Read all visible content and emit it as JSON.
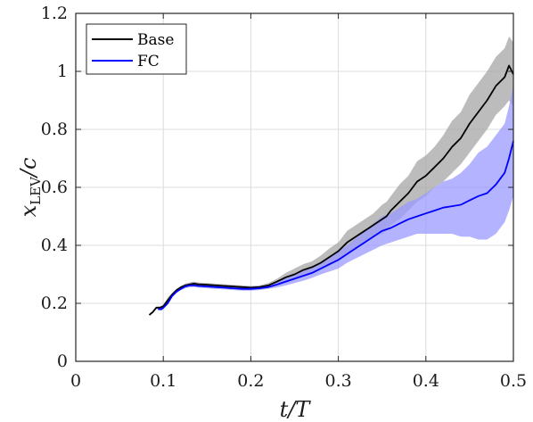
{
  "chart_data": {
    "type": "line",
    "xlabel": "t/T",
    "ylabel": "x_LEV/c",
    "ylabel_main": "x",
    "ylabel_sub": "LEV",
    "ylabel_tail": "/c",
    "xlim": [
      0,
      0.5
    ],
    "ylim": [
      0,
      1.2
    ],
    "xticks": [
      0,
      0.1,
      0.2,
      0.3,
      0.4,
      0.5
    ],
    "xtick_labels": [
      "0",
      "0.1",
      "0.2",
      "0.3",
      "0.4",
      "0.5"
    ],
    "yticks": [
      0,
      0.2,
      0.4,
      0.6,
      0.8,
      1.0,
      1.2
    ],
    "ytick_labels": [
      "0",
      "0.2",
      "0.4",
      "0.6",
      "0.8",
      "1",
      "1.2"
    ],
    "grid": true,
    "legend_position": "top-left",
    "series": [
      {
        "name": "Base",
        "color": "#000000",
        "band_color": "#a6a6a6",
        "x": [
          0.084,
          0.088,
          0.092,
          0.096,
          0.1,
          0.105,
          0.11,
          0.115,
          0.12,
          0.125,
          0.13,
          0.135,
          0.14,
          0.15,
          0.16,
          0.17,
          0.18,
          0.19,
          0.2,
          0.21,
          0.22,
          0.23,
          0.24,
          0.25,
          0.26,
          0.27,
          0.28,
          0.29,
          0.3,
          0.31,
          0.32,
          0.33,
          0.34,
          0.35,
          0.355,
          0.36,
          0.37,
          0.38,
          0.39,
          0.4,
          0.41,
          0.42,
          0.43,
          0.44,
          0.45,
          0.46,
          0.47,
          0.48,
          0.49,
          0.495,
          0.5
        ],
        "y": [
          0.16,
          0.17,
          0.185,
          0.185,
          0.19,
          0.21,
          0.23,
          0.245,
          0.255,
          0.262,
          0.265,
          0.268,
          0.266,
          0.264,
          0.262,
          0.26,
          0.258,
          0.256,
          0.254,
          0.256,
          0.262,
          0.275,
          0.29,
          0.3,
          0.315,
          0.325,
          0.34,
          0.36,
          0.38,
          0.41,
          0.43,
          0.45,
          0.47,
          0.49,
          0.5,
          0.52,
          0.55,
          0.58,
          0.62,
          0.64,
          0.67,
          0.7,
          0.74,
          0.77,
          0.82,
          0.86,
          0.9,
          0.95,
          0.98,
          1.02,
          0.99
        ],
        "lower": [
          0.16,
          0.17,
          0.18,
          0.18,
          0.185,
          0.2,
          0.225,
          0.24,
          0.25,
          0.255,
          0.258,
          0.26,
          0.26,
          0.258,
          0.256,
          0.255,
          0.252,
          0.25,
          0.248,
          0.25,
          0.255,
          0.265,
          0.275,
          0.28,
          0.295,
          0.305,
          0.315,
          0.33,
          0.35,
          0.37,
          0.39,
          0.41,
          0.43,
          0.44,
          0.45,
          0.47,
          0.49,
          0.52,
          0.55,
          0.57,
          0.6,
          0.62,
          0.65,
          0.68,
          0.72,
          0.76,
          0.8,
          0.85,
          0.88,
          0.9,
          0.88
        ],
        "upper": [
          0.16,
          0.17,
          0.19,
          0.19,
          0.195,
          0.22,
          0.235,
          0.25,
          0.26,
          0.268,
          0.272,
          0.275,
          0.272,
          0.27,
          0.268,
          0.266,
          0.264,
          0.262,
          0.26,
          0.262,
          0.27,
          0.285,
          0.305,
          0.32,
          0.335,
          0.345,
          0.365,
          0.39,
          0.41,
          0.45,
          0.47,
          0.49,
          0.51,
          0.54,
          0.55,
          0.57,
          0.61,
          0.64,
          0.69,
          0.71,
          0.74,
          0.78,
          0.83,
          0.86,
          0.92,
          0.96,
          1.0,
          1.05,
          1.08,
          1.12,
          1.1
        ]
      },
      {
        "name": "FC",
        "color": "#0000ff",
        "band_color": "#9999ff",
        "x": [
          0.094,
          0.098,
          0.1,
          0.105,
          0.11,
          0.115,
          0.12,
          0.125,
          0.13,
          0.135,
          0.14,
          0.15,
          0.16,
          0.17,
          0.18,
          0.19,
          0.2,
          0.21,
          0.22,
          0.23,
          0.24,
          0.25,
          0.26,
          0.27,
          0.28,
          0.29,
          0.3,
          0.31,
          0.32,
          0.33,
          0.34,
          0.35,
          0.36,
          0.37,
          0.38,
          0.39,
          0.4,
          0.41,
          0.42,
          0.43,
          0.44,
          0.45,
          0.46,
          0.47,
          0.48,
          0.49,
          0.495,
          0.5
        ],
        "y": [
          0.18,
          0.18,
          0.185,
          0.2,
          0.225,
          0.24,
          0.25,
          0.258,
          0.262,
          0.262,
          0.26,
          0.258,
          0.256,
          0.254,
          0.252,
          0.25,
          0.25,
          0.252,
          0.256,
          0.265,
          0.275,
          0.285,
          0.295,
          0.305,
          0.32,
          0.335,
          0.35,
          0.37,
          0.39,
          0.41,
          0.43,
          0.45,
          0.46,
          0.475,
          0.49,
          0.5,
          0.51,
          0.52,
          0.53,
          0.535,
          0.54,
          0.555,
          0.57,
          0.58,
          0.61,
          0.65,
          0.7,
          0.76
        ],
        "lower": [
          0.175,
          0.175,
          0.18,
          0.195,
          0.22,
          0.235,
          0.245,
          0.252,
          0.255,
          0.256,
          0.254,
          0.252,
          0.25,
          0.248,
          0.246,
          0.244,
          0.244,
          0.246,
          0.25,
          0.255,
          0.262,
          0.27,
          0.278,
          0.288,
          0.3,
          0.31,
          0.32,
          0.34,
          0.355,
          0.37,
          0.385,
          0.4,
          0.41,
          0.42,
          0.43,
          0.44,
          0.44,
          0.44,
          0.44,
          0.44,
          0.43,
          0.43,
          0.42,
          0.42,
          0.44,
          0.48,
          0.52,
          0.57
        ],
        "upper": [
          0.185,
          0.185,
          0.19,
          0.205,
          0.23,
          0.245,
          0.255,
          0.264,
          0.27,
          0.272,
          0.268,
          0.266,
          0.264,
          0.262,
          0.26,
          0.258,
          0.258,
          0.26,
          0.264,
          0.275,
          0.288,
          0.3,
          0.312,
          0.322,
          0.34,
          0.36,
          0.38,
          0.4,
          0.425,
          0.45,
          0.475,
          0.5,
          0.51,
          0.53,
          0.55,
          0.56,
          0.58,
          0.6,
          0.62,
          0.63,
          0.65,
          0.68,
          0.72,
          0.74,
          0.78,
          0.82,
          0.88,
          0.95
        ]
      }
    ]
  }
}
